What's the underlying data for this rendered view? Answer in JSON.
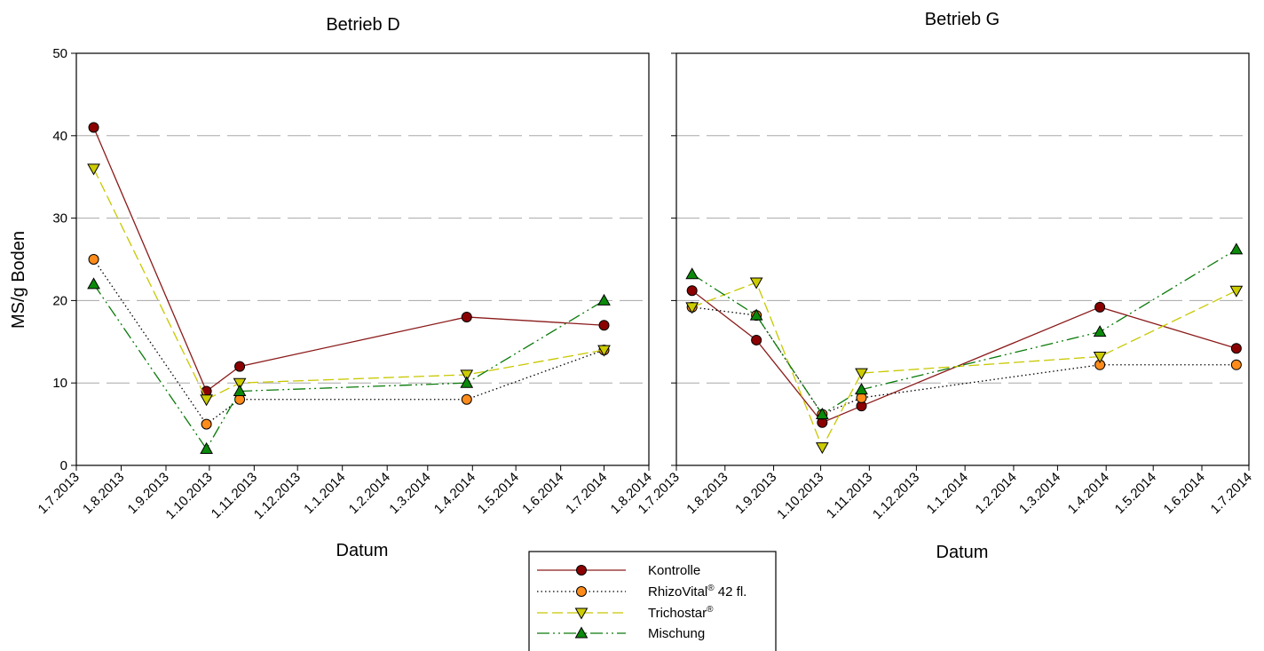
{
  "chart_data": [
    {
      "type": "line",
      "title": "Betrieb D",
      "xlabel": "Datum",
      "ylabel": "MS/g Boden",
      "ylim": [
        0,
        50
      ],
      "yticks": [
        "0",
        "10",
        "20",
        "30",
        "40",
        "50"
      ],
      "xlim": [
        "2013-07-01",
        "2014-08-01"
      ],
      "xticks": [
        {
          "label": "1.7.2013",
          "date": "2013-07-01"
        },
        {
          "label": "1.8.2013",
          "date": "2013-08-01"
        },
        {
          "label": "1.9.2013",
          "date": "2013-09-01"
        },
        {
          "label": "1.10.2013",
          "date": "2013-10-01"
        },
        {
          "label": "1.11.2013",
          "date": "2013-11-01"
        },
        {
          "label": "1.12.2013",
          "date": "2013-12-01"
        },
        {
          "label": "1.1.2014",
          "date": "2014-01-01"
        },
        {
          "label": "1.2.2014",
          "date": "2014-02-01"
        },
        {
          "label": "1.3.2014",
          "date": "2014-03-01"
        },
        {
          "label": "1.4.2014",
          "date": "2014-04-01"
        },
        {
          "label": "1.5.2014",
          "date": "2014-05-01"
        },
        {
          "label": "1.6.2014",
          "date": "2014-06-01"
        },
        {
          "label": "1.7.2014",
          "date": "2014-07-01"
        },
        {
          "label": "1.8.2014",
          "date": "2014-08-01"
        }
      ],
      "grid": "horizontal dashed",
      "series": [
        {
          "name": "Kontrolle",
          "x": [
            "2013-07-13",
            "2013-09-29",
            "2013-10-22",
            "2014-03-28",
            "2014-07-01"
          ],
          "values": [
            41,
            9,
            12,
            18,
            17
          ]
        },
        {
          "name": "RhizoVital® 42 fl.",
          "x": [
            "2013-07-13",
            "2013-09-29",
            "2013-10-22",
            "2014-03-28",
            "2014-07-01"
          ],
          "values": [
            25,
            5,
            8,
            8,
            14
          ]
        },
        {
          "name": "Trichostar®",
          "x": [
            "2013-07-13",
            "2013-09-29",
            "2013-10-22",
            "2014-03-28",
            "2014-07-01"
          ],
          "values": [
            36,
            8,
            10,
            11,
            14
          ]
        },
        {
          "name": "Mischung",
          "x": [
            "2013-07-13",
            "2013-09-29",
            "2013-10-22",
            "2014-03-28",
            "2014-07-01"
          ],
          "values": [
            22,
            2,
            9,
            10,
            20
          ]
        }
      ]
    },
    {
      "type": "line",
      "title": "Betrieb G",
      "xlabel": "Datum",
      "ylabel": "",
      "ylim": [
        0,
        50
      ],
      "xlim": [
        "2013-07-01",
        "2014-07-01"
      ],
      "xticks": [
        {
          "label": "1.7.2013",
          "date": "2013-07-01"
        },
        {
          "label": "1.8.2013",
          "date": "2013-08-01"
        },
        {
          "label": "1.9.2013",
          "date": "2013-09-01"
        },
        {
          "label": "1.10.2013",
          "date": "2013-10-01"
        },
        {
          "label": "1.11.2013",
          "date": "2013-11-01"
        },
        {
          "label": "1.12.2013",
          "date": "2013-12-01"
        },
        {
          "label": "1.1.2014",
          "date": "2014-01-01"
        },
        {
          "label": "1.2.2014",
          "date": "2014-02-01"
        },
        {
          "label": "1.3.2014",
          "date": "2014-03-01"
        },
        {
          "label": "1.4.2014",
          "date": "2014-04-01"
        },
        {
          "label": "1.5.2014",
          "date": "2014-05-01"
        },
        {
          "label": "1.6.2014",
          "date": "2014-06-01"
        },
        {
          "label": "1.7.2014",
          "date": "2014-07-01"
        }
      ],
      "grid": "horizontal dashed",
      "series": [
        {
          "name": "Kontrolle",
          "x": [
            "2013-07-11",
            "2013-08-21",
            "2013-10-02",
            "2013-10-27",
            "2014-03-28",
            "2014-06-23"
          ],
          "values": [
            21.2,
            15.2,
            5.2,
            7.2,
            19.2,
            14.2
          ]
        },
        {
          "name": "RhizoVital® 42 fl.",
          "x": [
            "2013-07-11",
            "2013-08-21",
            "2013-10-02",
            "2013-10-27",
            "2014-03-28",
            "2014-06-23"
          ],
          "values": [
            19.2,
            18.2,
            6.2,
            8.2,
            12.2,
            12.2
          ]
        },
        {
          "name": "Trichostar®",
          "x": [
            "2013-07-11",
            "2013-08-21",
            "2013-10-02",
            "2013-10-27",
            "2014-03-28",
            "2014-06-23"
          ],
          "values": [
            19.2,
            22.2,
            2.2,
            11.2,
            13.2,
            21.2
          ]
        },
        {
          "name": "Mischung",
          "x": [
            "2013-07-11",
            "2013-08-21",
            "2013-10-02",
            "2013-10-27",
            "2014-03-28",
            "2014-06-23"
          ],
          "values": [
            23.2,
            18.2,
            6.2,
            9.2,
            16.2,
            26.2
          ]
        }
      ]
    }
  ],
  "legend": {
    "items": [
      {
        "label": "Kontrolle",
        "sup": "",
        "suffix": ""
      },
      {
        "label": "RhizoVital",
        "sup": "®",
        "suffix": " 42 fl."
      },
      {
        "label": "Trichostar",
        "sup": "®",
        "suffix": ""
      },
      {
        "label": "Mischung",
        "sup": "",
        "suffix": ""
      }
    ]
  },
  "styles": {
    "Kontrolle": {
      "line": "#8b1a1a",
      "fill": "#8b0000",
      "marker": "circle",
      "dash": ""
    },
    "RhizoVital": {
      "line": "#000000",
      "fill": "#ff8c1a",
      "marker": "circle",
      "dash": "1.5,3"
    },
    "Trichostar": {
      "line": "#c8c800",
      "fill": "#cccc00",
      "marker": "triangle-down",
      "dash": "12,5"
    },
    "Mischung": {
      "line": "#0a7a0a",
      "fill": "#0a8a0a",
      "marker": "triangle-up",
      "dash": "14,4,2,4,2,4"
    }
  }
}
